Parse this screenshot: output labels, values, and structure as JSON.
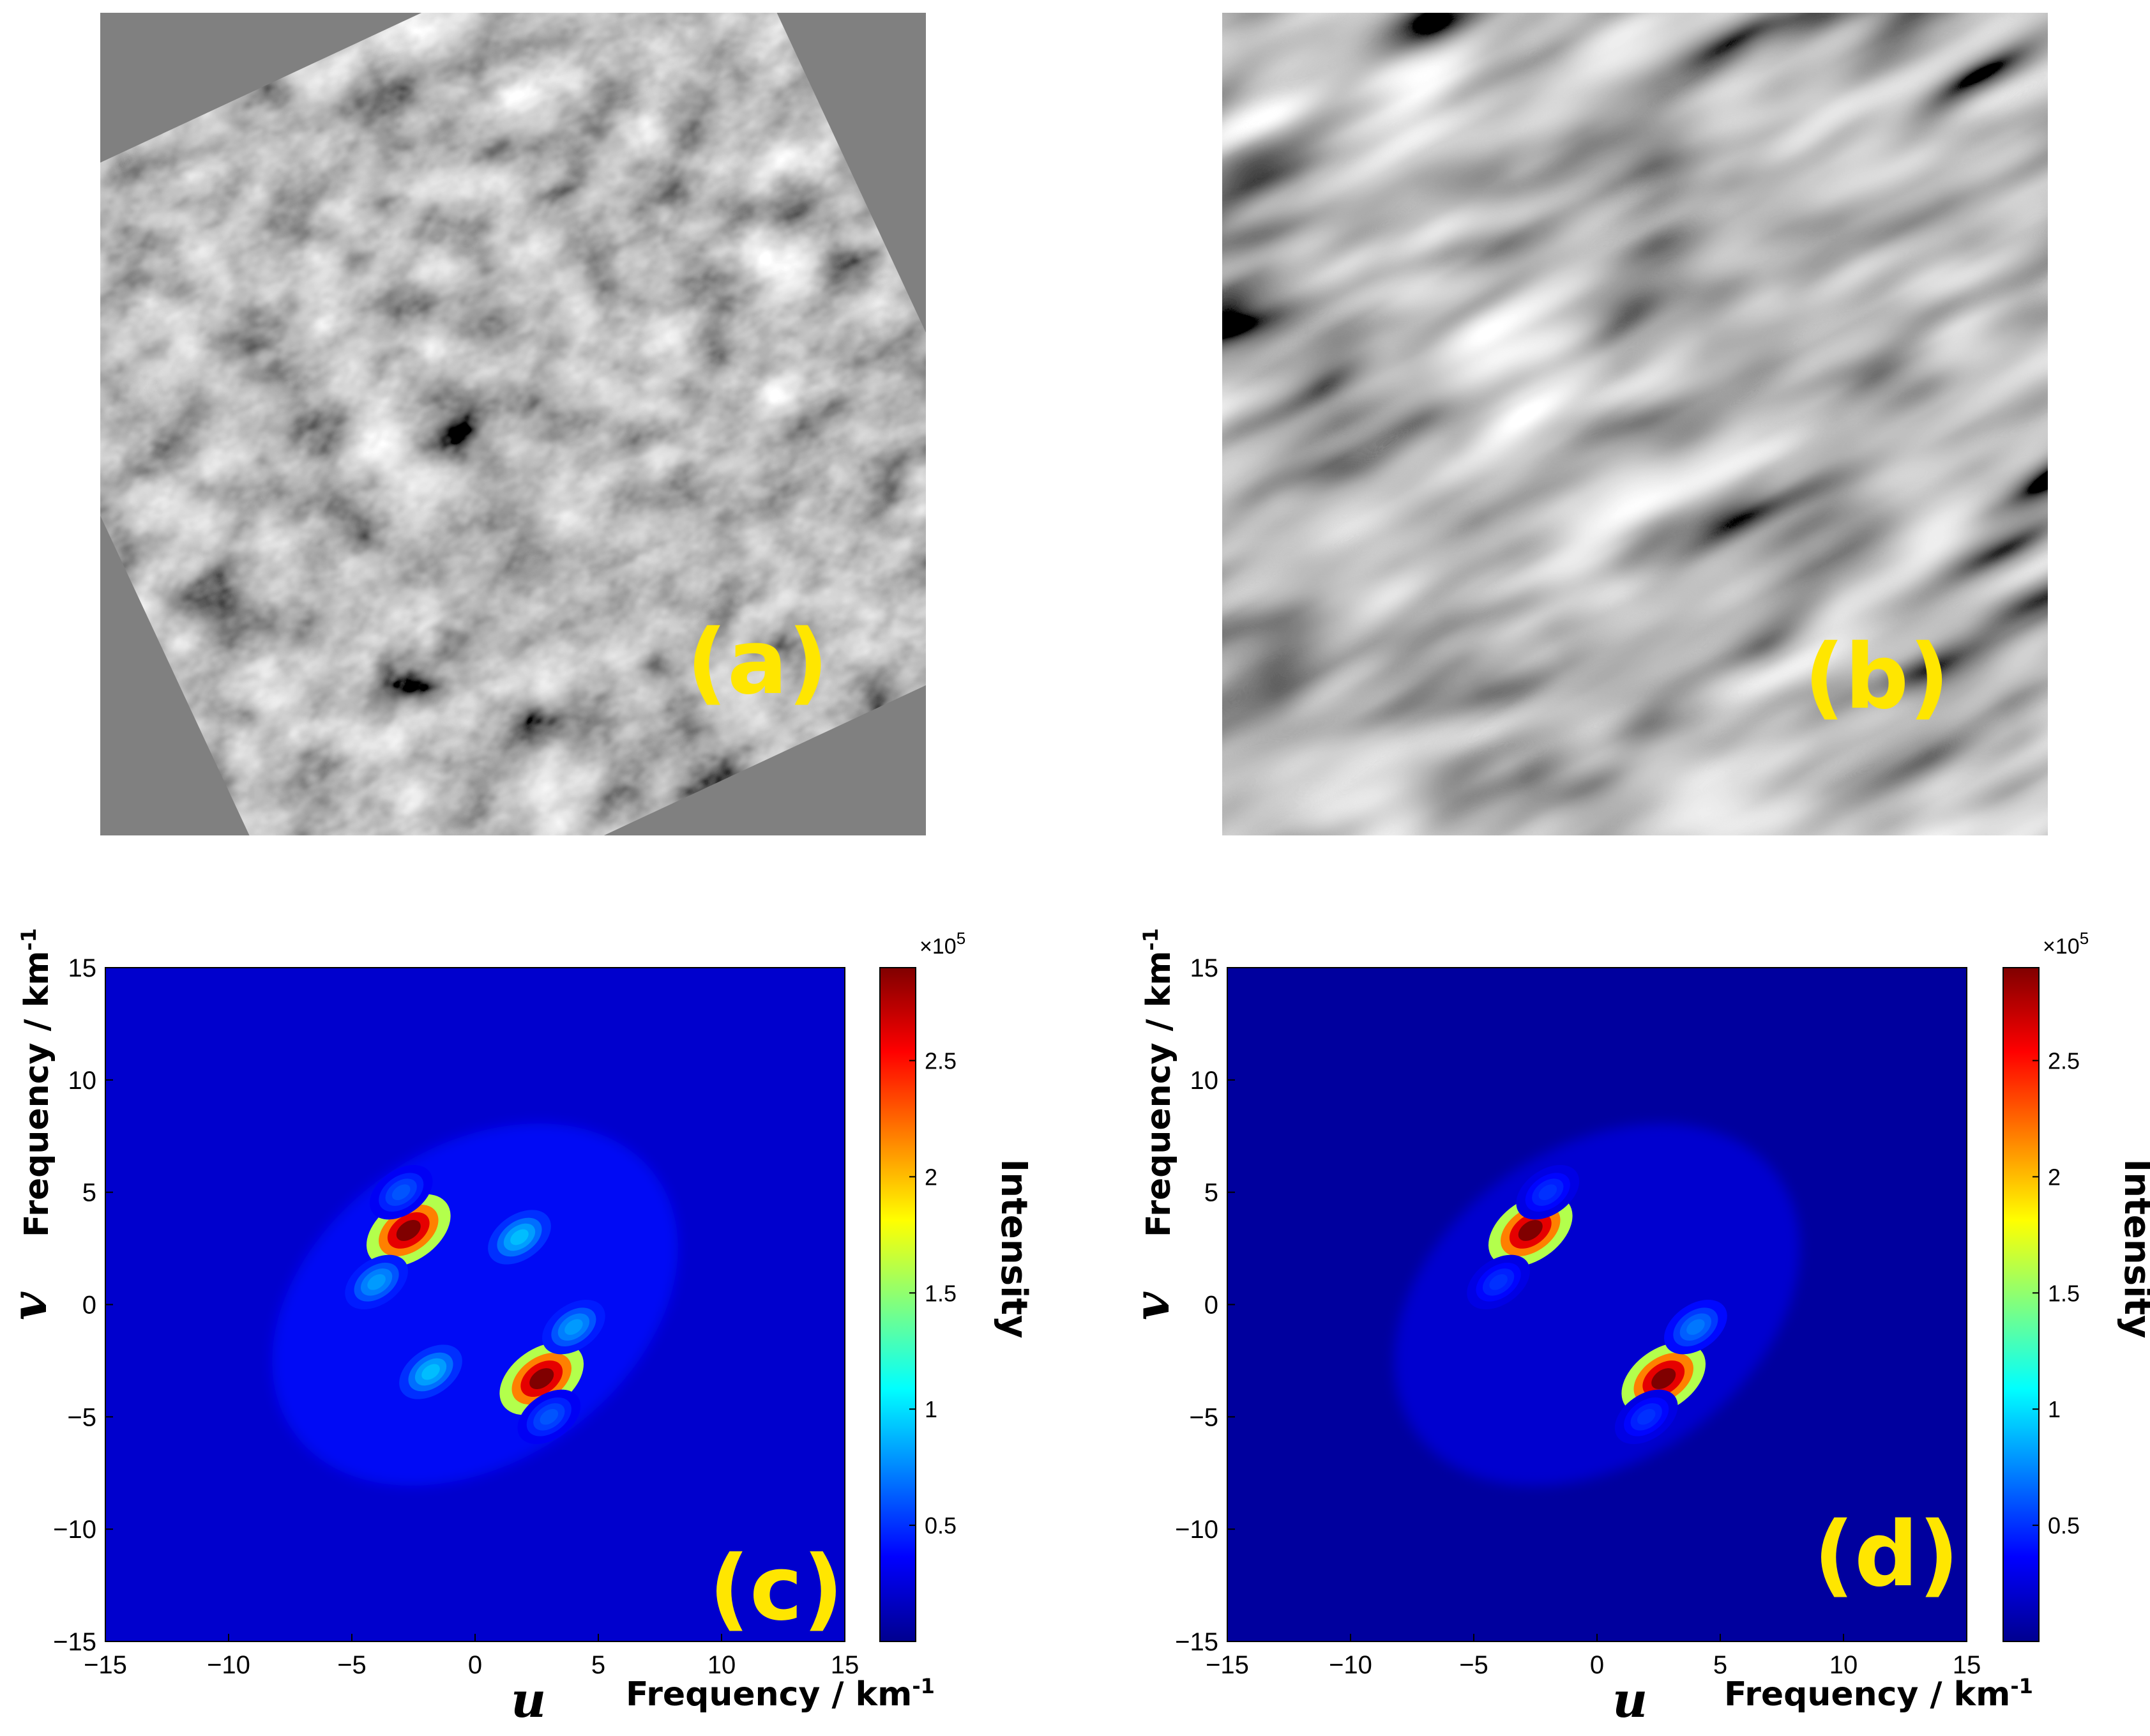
{
  "panels": {
    "a": {
      "label": "(a)",
      "type": "grayscale-texture",
      "texture": "noisy speckled wave field"
    },
    "b": {
      "label": "(b)",
      "type": "grayscale-texture",
      "texture": "smooth oblique wave crests"
    },
    "c": {
      "label": "(c)"
    },
    "d": {
      "label": "(d)"
    }
  },
  "colors": {
    "label_yellow": "#ffe600",
    "colormap": [
      "#00008f",
      "#0000ff",
      "#0080ff",
      "#00ffff",
      "#80ff80",
      "#ffff00",
      "#ff8000",
      "#ff0000",
      "#800000"
    ]
  },
  "chart_data": [
    {
      "id": "c",
      "type": "heatmap",
      "title": "",
      "xlabel_letter": "u",
      "xlabel": "Frequency / km",
      "xlabel_sup": "-1",
      "ylabel_letter": "v",
      "ylabel": "Frequency / km",
      "ylabel_sup": "-1",
      "xlim": [
        -15,
        15
      ],
      "ylim": [
        -15,
        15
      ],
      "xticks": [
        "−15",
        "−10",
        "−5",
        "0",
        "5",
        "10",
        "15"
      ],
      "yticks": [
        "15",
        "10",
        "5",
        "0",
        "−5",
        "−10",
        "−15"
      ],
      "colorbar": {
        "label": "Intensity",
        "multiplier": "×10",
        "exponent": "5",
        "range": [
          0,
          2.9
        ],
        "ticks": [
          "2.5",
          "2",
          "1.5",
          "1",
          "0.5"
        ]
      },
      "background_level": 0.2,
      "peaks": [
        {
          "u": -2.7,
          "v": 3.3,
          "intensity": 2.9
        },
        {
          "u": 2.7,
          "v": -3.3,
          "intensity": 2.9
        },
        {
          "u": 1.8,
          "v": 3.0,
          "intensity": 0.9
        },
        {
          "u": -1.8,
          "v": -3.0,
          "intensity": 0.9
        },
        {
          "u": -4.0,
          "v": 1.0,
          "intensity": 0.8
        },
        {
          "u": 4.0,
          "v": -1.0,
          "intensity": 0.8
        },
        {
          "u": -3.0,
          "v": 5.0,
          "intensity": 0.6
        },
        {
          "u": 3.0,
          "v": -5.0,
          "intensity": 0.6
        }
      ]
    },
    {
      "id": "d",
      "type": "heatmap",
      "title": "",
      "xlabel_letter": "u",
      "xlabel": "Frequency / km",
      "xlabel_sup": "-1",
      "ylabel_letter": "v",
      "ylabel": "Frequency / km",
      "ylabel_sup": "-1",
      "xlim": [
        -15,
        15
      ],
      "ylim": [
        -15,
        15
      ],
      "xticks": [
        "−15",
        "−10",
        "−5",
        "0",
        "5",
        "10",
        "15"
      ],
      "yticks": [
        "15",
        "10",
        "5",
        "0",
        "−5",
        "−10",
        "−15"
      ],
      "colorbar": {
        "label": "Intensity",
        "multiplier": "×10",
        "exponent": "5",
        "range": [
          0,
          2.9
        ],
        "ticks": [
          "2.5",
          "2",
          "1.5",
          "1",
          "0.5"
        ]
      },
      "background_level": 0.05,
      "peaks": [
        {
          "u": -2.7,
          "v": 3.3,
          "intensity": 2.9
        },
        {
          "u": 2.7,
          "v": -3.3,
          "intensity": 2.9
        },
        {
          "u": 4.0,
          "v": -1.0,
          "intensity": 0.7
        },
        {
          "u": -4.0,
          "v": 1.0,
          "intensity": 0.5
        },
        {
          "u": -2.0,
          "v": 5.0,
          "intensity": 0.5
        },
        {
          "u": 2.0,
          "v": -5.0,
          "intensity": 0.5
        }
      ]
    }
  ]
}
